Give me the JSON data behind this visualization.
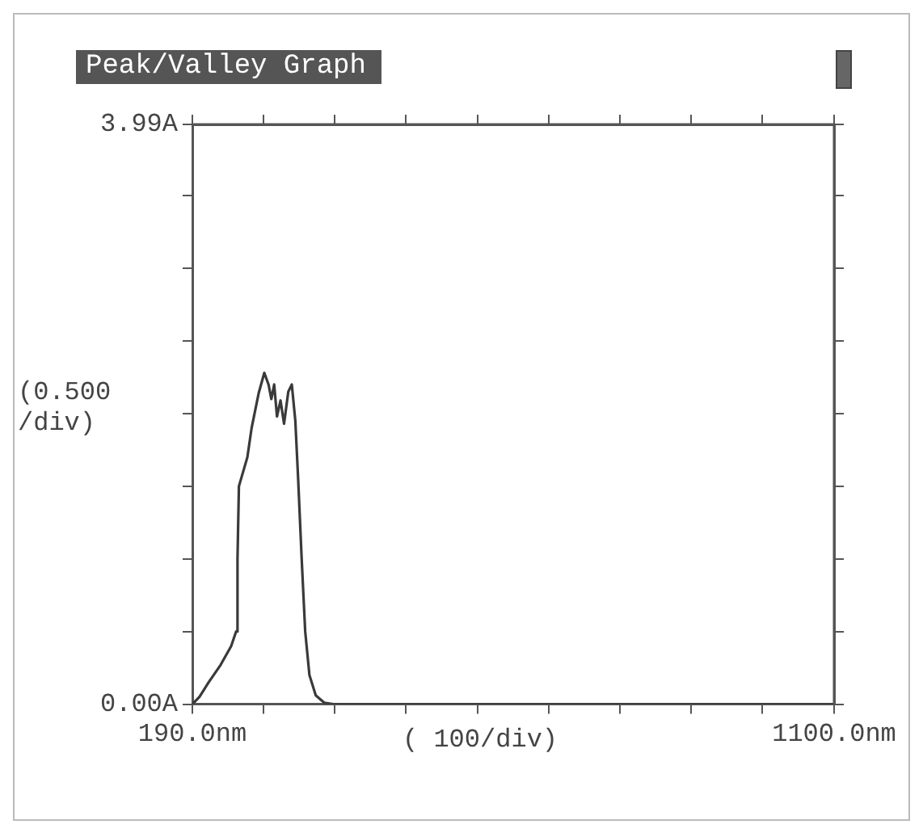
{
  "chart_data": {
    "type": "line",
    "title": "Peak/Valley Graph",
    "xlabel": "( 100/div)",
    "ylabel": "(0.500 /div)",
    "x": [
      190,
      200,
      213,
      230,
      245,
      252,
      254,
      256,
      262,
      268,
      274,
      284,
      292,
      298,
      302,
      306,
      310,
      315,
      320,
      326,
      331,
      336,
      340,
      345,
      350,
      356,
      365,
      377,
      390,
      1100
    ],
    "series": [
      {
        "color": "#3a3a3a",
        "values": [
          0,
          0.05,
          0.15,
          0.27,
          0.4,
          0.5,
          1.0,
          1.5,
          1.6,
          1.7,
          1.9,
          2.14,
          2.28,
          2.2,
          2.1,
          2.2,
          1.98,
          2.09,
          1.93,
          2.15,
          2.2,
          1.95,
          1.55,
          1.0,
          0.5,
          0.2,
          0.06,
          0.01,
          0,
          0
        ]
      }
    ],
    "xlim": [
      190,
      1100
    ],
    "xticks": [
      {
        "value": 190,
        "label": "190.0nm"
      },
      {
        "value": 291,
        "label": null
      },
      {
        "value": 392,
        "label": null
      },
      {
        "value": 493,
        "label": null
      },
      {
        "value": 594,
        "label": null
      },
      {
        "value": 695,
        "label": null
      },
      {
        "value": 796,
        "label": null
      },
      {
        "value": 897,
        "label": null
      },
      {
        "value": 998,
        "label": null
      },
      {
        "value": 1100,
        "label": "1100.0nm"
      }
    ],
    "ylim": [
      0,
      3.99
    ],
    "yticks": [
      {
        "value": 0,
        "label": "0.00A"
      },
      {
        "value": 0.5,
        "label": null
      },
      {
        "value": 1,
        "label": null
      },
      {
        "value": 1.5,
        "label": null
      },
      {
        "value": 2,
        "label": null
      },
      {
        "value": 2.5,
        "label": null
      },
      {
        "value": 3,
        "label": null
      },
      {
        "value": 3.5,
        "label": null
      },
      {
        "value": 3.99,
        "label": "3.99A"
      }
    ],
    "grid": false,
    "legend": false,
    "marker": "none",
    "line_style": "solid"
  }
}
